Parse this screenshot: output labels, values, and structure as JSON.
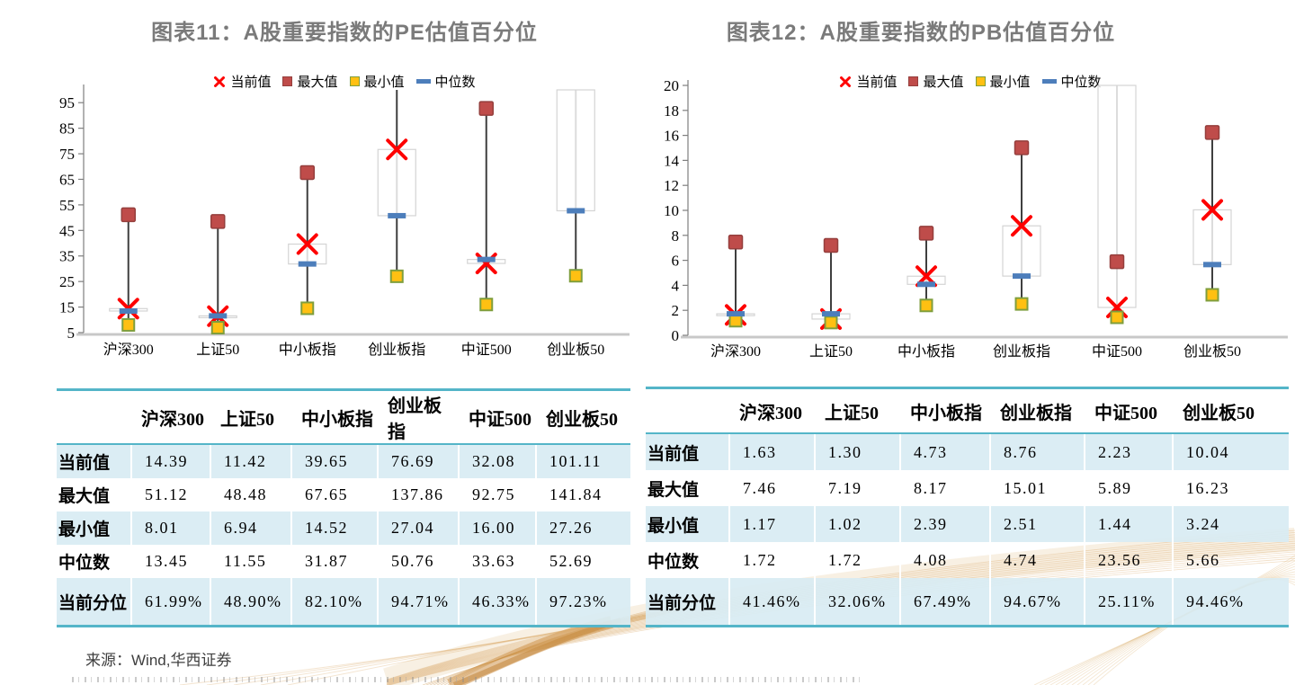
{
  "source_note": "来源：Wind,华西证券",
  "colors": {
    "title_gray": "#7a7a7a",
    "accent_teal": "#54b5c8",
    "stripe_blue": "#d8ecf3",
    "current_red": "#fe0000",
    "max_red_fill": "#bf4c4a",
    "max_red_border": "#953f3d",
    "min_yellow_fill": "#ffc012",
    "min_olive_border": "#7f9e3d",
    "median_blue": "#4d7ebb",
    "hilo_line": "#3f3f3f",
    "axis_silver": "#c8c8c8",
    "wave_gold": "#d7a05c"
  },
  "icons": {
    "current": "x-cross",
    "max": "filled-square",
    "min": "filled-square",
    "median": "horizontal-dash"
  },
  "chart_data": [
    {
      "type": "hlc-stock",
      "title": "图表11：A股重要指数的PE估值百分位",
      "categories": [
        "沪深300",
        "上证50",
        "中小板指",
        "创业板指",
        "中证500",
        "创业板50"
      ],
      "series": [
        {
          "name": "当前值",
          "marker": "x-cross",
          "values": [
            14.39,
            11.42,
            39.65,
            76.69,
            32.08,
            101.11
          ]
        },
        {
          "name": "最大值",
          "marker": "filled-square",
          "values": [
            51.12,
            48.48,
            67.65,
            137.86,
            92.75,
            141.84
          ]
        },
        {
          "name": "最小值",
          "marker": "filled-square",
          "values": [
            8.01,
            6.94,
            14.52,
            27.04,
            16.0,
            27.26
          ]
        },
        {
          "name": "中位数",
          "marker": "horizontal-dash",
          "values": [
            13.45,
            11.55,
            31.87,
            50.76,
            33.63,
            52.69
          ]
        }
      ],
      "ylim": [
        5,
        100
      ],
      "yticks": [
        5,
        15,
        25,
        35,
        45,
        55,
        65,
        75,
        85,
        95
      ],
      "grid": false,
      "legend_position": "top"
    },
    {
      "type": "hlc-stock",
      "title": "图表12：A股重要指数的PB估值百分位",
      "categories": [
        "沪深300",
        "上证50",
        "中小板指",
        "创业板指",
        "中证500",
        "创业板50"
      ],
      "series": [
        {
          "name": "当前值",
          "marker": "x-cross",
          "values": [
            1.63,
            1.3,
            4.73,
            8.76,
            2.23,
            10.04
          ]
        },
        {
          "name": "最大值",
          "marker": "filled-square",
          "values": [
            7.46,
            7.19,
            8.17,
            15.01,
            5.89,
            16.23
          ]
        },
        {
          "name": "最小值",
          "marker": "filled-square",
          "values": [
            1.17,
            1.02,
            2.39,
            2.51,
            1.44,
            3.24
          ]
        },
        {
          "name": "中位数",
          "marker": "horizontal-dash",
          "values": [
            1.72,
            1.72,
            4.08,
            4.74,
            23.56,
            5.66
          ]
        }
      ],
      "ylim": [
        0,
        20
      ],
      "yticks": [
        0,
        2,
        4,
        6,
        8,
        10,
        12,
        14,
        16,
        18,
        20
      ],
      "grid": false,
      "legend_position": "top"
    }
  ],
  "tables": [
    {
      "columns": [
        "",
        "沪深300",
        "上证50",
        "中小板指",
        "创业板指",
        "中证500",
        "创业板50"
      ],
      "rows": [
        {
          "label": "当前值",
          "values": [
            "14.39",
            "11.42",
            "39.65",
            "76.69",
            "32.08",
            "101.11"
          ]
        },
        {
          "label": "最大值",
          "values": [
            "51.12",
            "48.48",
            "67.65",
            "137.86",
            "92.75",
            "141.84"
          ]
        },
        {
          "label": "最小值",
          "values": [
            "8.01",
            "6.94",
            "14.52",
            "27.04",
            "16.00",
            "27.26"
          ]
        },
        {
          "label": "中位数",
          "values": [
            "13.45",
            "11.55",
            "31.87",
            "50.76",
            "33.63",
            "52.69"
          ]
        },
        {
          "label": "当前分位",
          "values": [
            "61.99%",
            "48.90%",
            "82.10%",
            "94.71%",
            "46.33%",
            "97.23%"
          ]
        }
      ]
    },
    {
      "columns": [
        "",
        "沪深300",
        "上证50",
        "中小板指",
        "创业板指",
        "中证500",
        "创业板50"
      ],
      "rows": [
        {
          "label": "当前值",
          "values": [
            "1.63",
            "1.30",
            "4.73",
            "8.76",
            "2.23",
            "10.04"
          ]
        },
        {
          "label": "最大值",
          "values": [
            "7.46",
            "7.19",
            "8.17",
            "15.01",
            "5.89",
            "16.23"
          ]
        },
        {
          "label": "最小值",
          "values": [
            "1.17",
            "1.02",
            "2.39",
            "2.51",
            "1.44",
            "3.24"
          ]
        },
        {
          "label": "中位数",
          "values": [
            "1.72",
            "1.72",
            "4.08",
            "4.74",
            "23.56",
            "5.66"
          ]
        },
        {
          "label": "当前分位",
          "values": [
            "41.46%",
            "32.06%",
            "67.49%",
            "94.67%",
            "25.11%",
            "94.46%"
          ]
        }
      ]
    }
  ]
}
